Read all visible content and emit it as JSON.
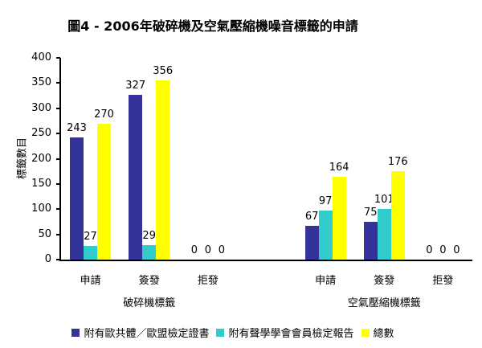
{
  "page": {
    "background": "#FFFFFF",
    "text_color": "#000000"
  },
  "chart_data": {
    "type": "bar",
    "title": "圖4 - 2006年破碎機及空氣壓縮機噪音標籤的申請",
    "xlabel": "",
    "ylabel": "標籤數目",
    "ylim": [
      0,
      400
    ],
    "yticks": [
      0,
      50,
      100,
      150,
      200,
      250,
      300,
      350,
      400
    ],
    "grid": false,
    "legend_position": "bottom",
    "series": [
      {
        "name": "附有歐共體／歐盟檢定證書",
        "color": "#333399"
      },
      {
        "name": "附有聲學學會會員檢定報告",
        "color": "#33CCCC"
      },
      {
        "name": "總數",
        "color": "#FFFF00"
      }
    ],
    "groups": [
      {
        "label": "破碎機標籤",
        "categories": [
          "申請",
          "簽發",
          "拒發"
        ],
        "values": [
          [
            243,
            27,
            270
          ],
          [
            327,
            29,
            356
          ],
          [
            0,
            0,
            0
          ]
        ]
      },
      {
        "label": "空氣壓縮機標籤",
        "categories": [
          "申請",
          "簽發",
          "拒發"
        ],
        "values": [
          [
            67,
            97,
            164
          ],
          [
            75,
            101,
            176
          ],
          [
            0,
            0,
            0
          ]
        ]
      }
    ]
  }
}
